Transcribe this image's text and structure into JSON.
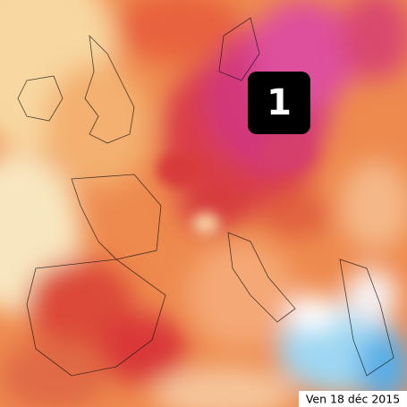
{
  "badge": {
    "label": "1"
  },
  "date": "Ven 18 déc 2015"
}
